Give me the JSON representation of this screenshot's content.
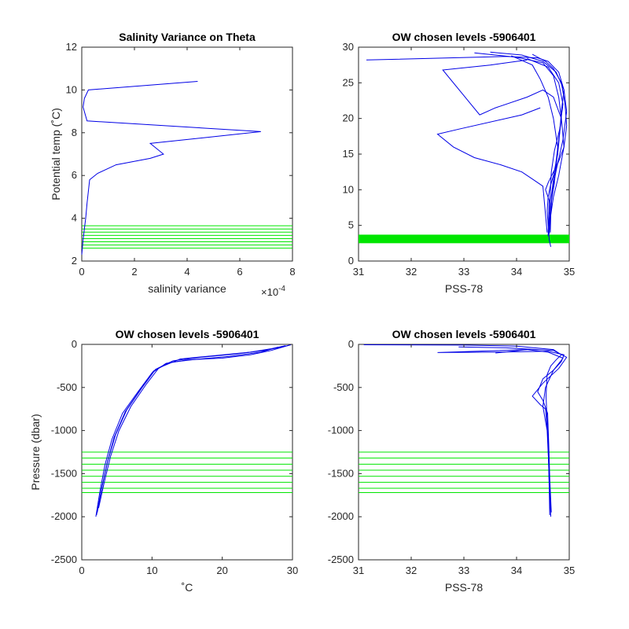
{
  "colors": {
    "profile": "#0000e6",
    "chosen": "#00e600",
    "axis": "#262626"
  },
  "chart_data": [
    {
      "type": "line",
      "title": "Salinity Variance on Theta",
      "xlabel": "salinity variance",
      "x_exponent": "×10",
      "x_exponent_power": "-4",
      "ylabel": "Potential temp (˚C)",
      "xlim": [
        0,
        8
      ],
      "ylim": [
        2,
        12
      ],
      "xticks": [
        "0",
        "2",
        "4",
        "6",
        "8"
      ],
      "xtick_values": [
        0,
        2,
        4,
        6,
        8
      ],
      "yticks": [
        "2",
        "4",
        "6",
        "8",
        "10",
        "12"
      ],
      "ytick_values": [
        2,
        4,
        6,
        8,
        10,
        12
      ],
      "series": [
        {
          "x": [
            0,
            0.05,
            0.1,
            0.15,
            0.2,
            0.3,
            0.6,
            1.3,
            2.6,
            3.1,
            2.6,
            6.8,
            0.2,
            0.05,
            0.1,
            0.25,
            4.4
          ],
          "y": [
            2.3,
            3.0,
            3.5,
            4.0,
            4.7,
            5.8,
            6.1,
            6.5,
            6.8,
            7.0,
            7.5,
            8.05,
            8.55,
            9.2,
            9.6,
            10.0,
            10.4
          ]
        }
      ],
      "hlines": [
        2.6,
        2.75,
        2.9,
        3.05,
        3.2,
        3.35,
        3.5,
        3.65
      ]
    },
    {
      "type": "line",
      "title": "OW chosen levels -5906401",
      "xlabel": "PSS-78",
      "ylabel": "",
      "xlim": [
        31,
        35
      ],
      "ylim": [
        0,
        30
      ],
      "xticks": [
        "31",
        "32",
        "33",
        "34",
        "35"
      ],
      "xtick_values": [
        31,
        32,
        33,
        34,
        35
      ],
      "yticks": [
        "0",
        "5",
        "10",
        "15",
        "20",
        "25",
        "30"
      ],
      "ytick_values": [
        0,
        5,
        10,
        15,
        20,
        25,
        30
      ],
      "series": [
        {
          "x": [
            34.65,
            34.62,
            34.6,
            34.58,
            34.6,
            34.64,
            34.7,
            34.78,
            34.82,
            34.85,
            34.9,
            34.8,
            34.6,
            34.4,
            33.8,
            31.15
          ],
          "y": [
            2.0,
            3.0,
            5.0,
            7.0,
            9.0,
            10.5,
            12.0,
            15.0,
            18.0,
            21.0,
            24.0,
            26.5,
            28.0,
            28.5,
            28.7,
            28.2
          ]
        },
        {
          "x": [
            34.6,
            34.65,
            34.72,
            34.75,
            34.8,
            34.85,
            34.8,
            34.7,
            34.5,
            34.0,
            33.2
          ],
          "y": [
            3.5,
            8.0,
            11.0,
            14.0,
            17.0,
            20.0,
            23.0,
            26.0,
            27.8,
            28.6,
            29.2
          ]
        },
        {
          "x": [
            34.6,
            34.62,
            34.55,
            34.6,
            34.7,
            34.8,
            34.9,
            34.95,
            34.92,
            34.85,
            34.7,
            34.55,
            34.3
          ],
          "y": [
            3.6,
            8.5,
            10.0,
            11.0,
            12.5,
            14.0,
            16.0,
            19.0,
            22.0,
            25.0,
            27.0,
            28.0,
            29.0
          ]
        },
        {
          "x": [
            34.64,
            34.66,
            34.7,
            34.75,
            34.78,
            34.7,
            34.6,
            34.45,
            34.3,
            33.9
          ],
          "y": [
            4.0,
            9.0,
            11.5,
            13.0,
            16.0,
            20.0,
            23.0,
            25.5,
            27.5,
            28.8
          ]
        },
        {
          "x": [
            34.58,
            34.5,
            34.3,
            34.1,
            33.7,
            33.2,
            32.8,
            32.5,
            32.9,
            34.1,
            34.45
          ],
          "y": [
            4.0,
            10.5,
            11.5,
            12.5,
            13.5,
            14.5,
            16.0,
            17.8,
            18.5,
            20.5,
            21.5
          ]
        },
        {
          "x": [
            34.6,
            34.7,
            34.8,
            34.9,
            34.85,
            34.7,
            34.5,
            34.2,
            33.6,
            33.3,
            32.6,
            33.5,
            34.2
          ],
          "y": [
            4.0,
            9.0,
            12.0,
            16.0,
            20.0,
            23.0,
            24.0,
            23.0,
            21.5,
            20.5,
            26.8,
            27.5,
            28.2
          ]
        },
        {
          "x": [
            34.62,
            34.68,
            34.76,
            34.88,
            34.95,
            34.9,
            34.75,
            34.5,
            34.1,
            33.5
          ],
          "y": [
            3.8,
            10.0,
            13.0,
            17.0,
            21.0,
            24.0,
            26.5,
            28.0,
            28.9,
            29.3
          ]
        },
        {
          "x": [
            34.6,
            34.64,
            34.66,
            34.72,
            34.82,
            34.88,
            34.8,
            34.6,
            34.2
          ],
          "y": [
            4.2,
            9.5,
            12.5,
            15.5,
            18.5,
            22.0,
            25.0,
            27.2,
            28.4
          ]
        }
      ],
      "band": [
        2.5,
        3.7
      ]
    },
    {
      "type": "line",
      "title": "OW chosen levels -5906401",
      "xlabel": "˚C",
      "ylabel": "Pressure (dbar)",
      "xlim": [
        0,
        30
      ],
      "ylim": [
        -2500,
        0
      ],
      "xticks": [
        "0",
        "10",
        "20",
        "30"
      ],
      "xtick_values": [
        0,
        10,
        20,
        30
      ],
      "yticks": [
        "-2500",
        "-2000",
        "-1500",
        "-1000",
        "-500",
        "0"
      ],
      "ytick_values": [
        -2500,
        -2000,
        -1500,
        -1000,
        -500,
        0
      ],
      "series": [
        {
          "x": [
            2.0,
            2.6,
            3.3,
            4.3,
            5.8,
            8.0,
            10.0,
            12.0,
            15.0,
            20.0,
            24.0,
            27.0,
            29.5
          ],
          "y": [
            -2000,
            -1700,
            -1400,
            -1100,
            -800,
            -550,
            -330,
            -220,
            -180,
            -160,
            -120,
            -70,
            -10
          ]
        },
        {
          "x": [
            2.2,
            2.9,
            3.7,
            4.8,
            6.4,
            8.6,
            10.5,
            13.0,
            17.0,
            22.0,
            26.0,
            28.5,
            29.8
          ],
          "y": [
            -1950,
            -1650,
            -1350,
            -1050,
            -760,
            -500,
            -290,
            -190,
            -150,
            -110,
            -70,
            -30,
            -5
          ]
        },
        {
          "x": [
            2.4,
            3.2,
            4.1,
            5.3,
            7.0,
            9.2,
            11.0,
            14.0,
            19.0,
            24.0,
            27.0,
            29.0
          ],
          "y": [
            -1900,
            -1600,
            -1300,
            -1000,
            -720,
            -460,
            -270,
            -170,
            -130,
            -90,
            -50,
            -15
          ]
        },
        {
          "x": [
            2.1,
            2.8,
            3.6,
            4.6,
            6.2,
            8.4,
            10.2,
            12.5,
            16.0,
            21.0,
            25.5,
            28.0
          ],
          "y": [
            -1980,
            -1680,
            -1380,
            -1080,
            -780,
            -520,
            -310,
            -210,
            -175,
            -140,
            -90,
            -30
          ]
        }
      ],
      "hlines": [
        -1250,
        -1320,
        -1390,
        -1460,
        -1530,
        -1600,
        -1670,
        -1720
      ]
    },
    {
      "type": "line",
      "title": "OW chosen levels -5906401",
      "xlabel": "PSS-78",
      "ylabel": "",
      "xlim": [
        31,
        35
      ],
      "ylim": [
        -2500,
        0
      ],
      "xticks": [
        "31",
        "32",
        "33",
        "34",
        "35"
      ],
      "xtick_values": [
        31,
        32,
        33,
        34,
        35
      ],
      "yticks": [
        "-2500",
        "-2000",
        "-1500",
        "-1000",
        "-500",
        "0"
      ],
      "ytick_values": [
        -2500,
        -2000,
        -1500,
        -1000,
        -500,
        0
      ],
      "series": [
        {
          "x": [
            34.65,
            34.62,
            34.6,
            34.58,
            34.56,
            34.58,
            34.65,
            34.75,
            34.85,
            34.7,
            34.0,
            33.0,
            31.1
          ],
          "y": [
            -2000,
            -1600,
            -1200,
            -900,
            -600,
            -350,
            -250,
            -180,
            -120,
            -60,
            -20,
            -8,
            -5
          ]
        },
        {
          "x": [
            34.66,
            34.63,
            34.61,
            34.59,
            34.5,
            34.4,
            34.5,
            34.7,
            34.85,
            34.9,
            34.6,
            33.5,
            32.5,
            34.2
          ],
          "y": [
            -1950,
            -1550,
            -1150,
            -800,
            -650,
            -550,
            -400,
            -300,
            -200,
            -120,
            -80,
            -90,
            -95,
            -60
          ]
        },
        {
          "x": [
            34.64,
            34.62,
            34.6,
            34.55,
            34.45,
            34.3,
            34.5,
            34.8,
            34.95,
            34.7,
            33.8,
            32.9
          ],
          "y": [
            -1900,
            -1500,
            -1100,
            -750,
            -700,
            -600,
            -450,
            -280,
            -150,
            -70,
            -40,
            -30
          ]
        },
        {
          "x": [
            34.63,
            34.61,
            34.58,
            34.5,
            34.55,
            34.7,
            34.88,
            34.6,
            34.2,
            33.6
          ],
          "y": [
            -1980,
            -1400,
            -1000,
            -720,
            -500,
            -300,
            -160,
            -90,
            -60,
            -100
          ]
        }
      ],
      "hlines": [
        -1250,
        -1320,
        -1390,
        -1460,
        -1530,
        -1600,
        -1670,
        -1720
      ]
    }
  ]
}
